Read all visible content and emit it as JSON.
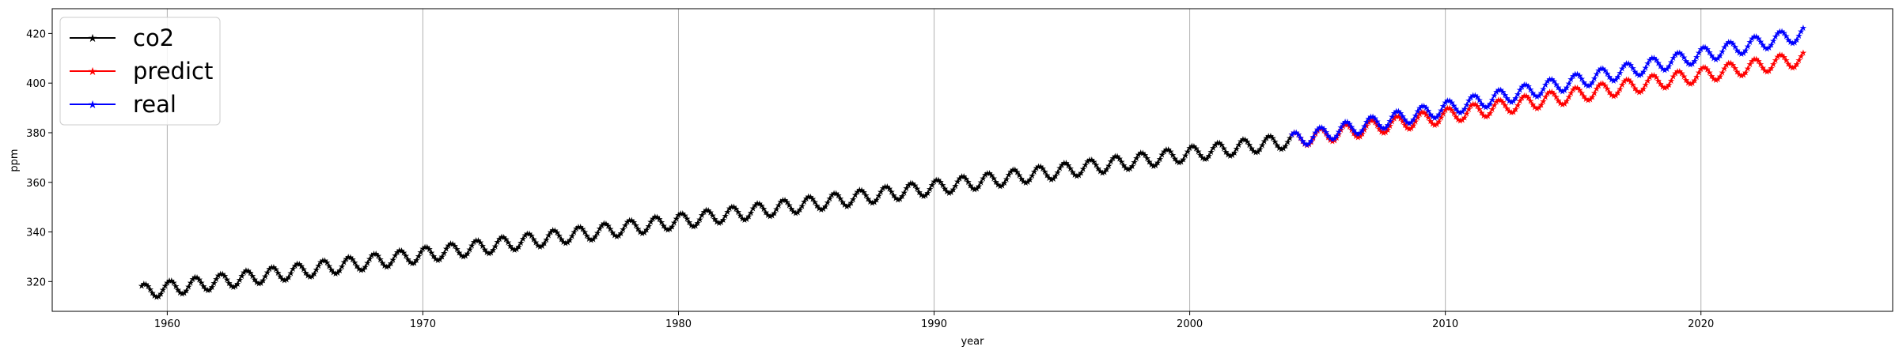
{
  "chart_data": {
    "type": "line",
    "title": "",
    "xlabel": "year",
    "ylabel": "ppm",
    "xlim": [
      1955.5,
      2027.5
    ],
    "ylim": [
      308,
      430
    ],
    "xticks": [
      1960,
      1970,
      1980,
      1990,
      2000,
      2010,
      2020
    ],
    "yticks": [
      320,
      340,
      360,
      380,
      400,
      420
    ],
    "grid": "x-axis vertical lines",
    "legend_position": "top-left",
    "series": [
      {
        "name": "co2",
        "color": "#000000",
        "marker": "star",
        "x_start": 1959.0,
        "x_end": 2004.0,
        "trend_start": 316.0,
        "trend_end": 377.0,
        "seasonal_amplitude": 3.0
      },
      {
        "name": "predict",
        "color": "#ff0000",
        "marker": "star",
        "x_start": 2004.0,
        "x_end": 2024.0,
        "trend_start": 377.0,
        "trend_end": 410.0,
        "seasonal_amplitude": 3.0
      },
      {
        "name": "real",
        "color": "#0000ff",
        "marker": "star",
        "x_start": 2004.0,
        "x_end": 2024.0,
        "trend_start": 377.0,
        "trend_end": 420.0,
        "seasonal_amplitude": 3.0
      }
    ]
  }
}
